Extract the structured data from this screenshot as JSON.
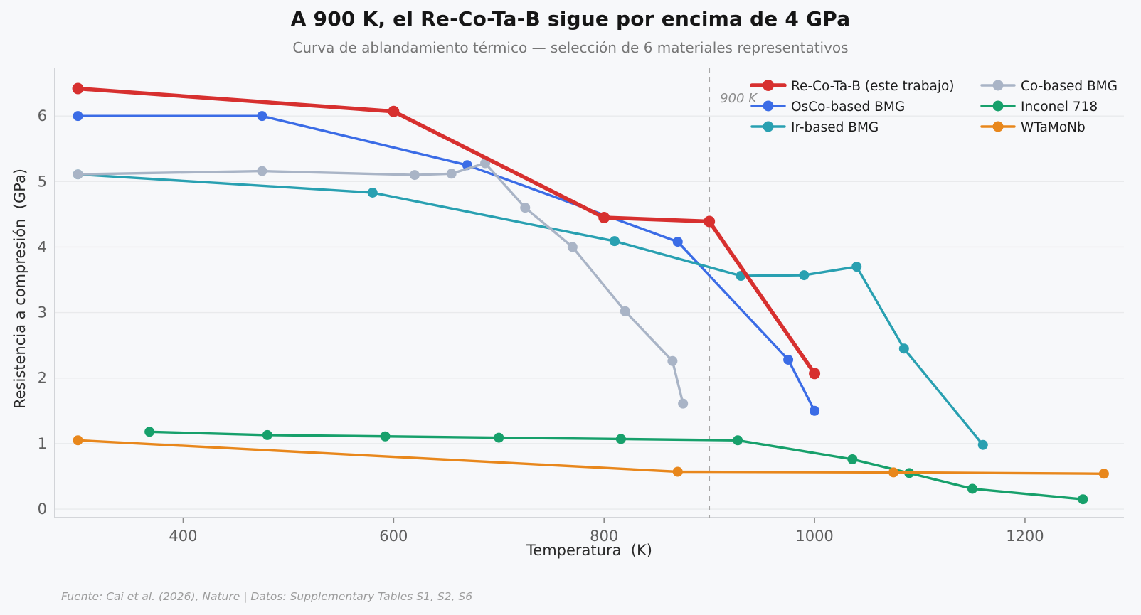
{
  "figure": {
    "title": "A 900 K, el Re-Co-Ta-B sigue por encima de 4 GPa",
    "subtitle": "Curva de ablandamiento térmico — selección de 6 materiales representativos",
    "footer": "Fuente: Cai et al. (2026), Nature | Datos: Supplementary Tables S1, S2, S6"
  },
  "chart_data": {
    "type": "line",
    "title": "A 900 K, el Re-Co-Ta-B sigue por encima de 4 GPa",
    "subtitle": "Curva de ablandamiento térmico — selección de 6 materiales representativos",
    "xlabel": "Temperatura  (K)",
    "ylabel": "Resistencia a compresión  (GPa)",
    "xlim": [
      278,
      1294
    ],
    "ylim": [
      -0.13,
      6.74
    ],
    "xticks": [
      400,
      600,
      800,
      1000,
      1200
    ],
    "yticks": [
      0,
      1,
      2,
      3,
      4,
      5,
      6
    ],
    "grid": "horizontal-only",
    "legend_position": "upper-right, 2 columns, no frame",
    "annotation": {
      "type": "vline",
      "x": 900,
      "label": "900 K"
    },
    "series": [
      {
        "name": "Re-Co-Ta-B (este trabajo)",
        "color": "#d7302f",
        "emphasis": true,
        "x": [
          300,
          600,
          800,
          900,
          1000
        ],
        "y": [
          6.42,
          6.07,
          4.45,
          4.39,
          2.07
        ]
      },
      {
        "name": "OsCo-based BMG",
        "color": "#3b6ce6",
        "emphasis": false,
        "x": [
          300,
          475,
          670,
          870,
          975,
          1000
        ],
        "y": [
          6.0,
          6.0,
          5.25,
          4.08,
          2.28,
          1.5
        ]
      },
      {
        "name": "Ir-based BMG",
        "color": "#29a0b1",
        "emphasis": false,
        "x": [
          300,
          580,
          810,
          930,
          990,
          1040,
          1085,
          1160
        ],
        "y": [
          5.11,
          4.83,
          4.09,
          3.56,
          3.57,
          3.7,
          2.45,
          0.98
        ]
      },
      {
        "name": "Co-based BMG",
        "color": "#a9b4c6",
        "emphasis": false,
        "x": [
          300,
          475,
          620,
          655,
          687,
          725,
          770,
          820,
          865,
          875
        ],
        "y": [
          5.11,
          5.16,
          5.1,
          5.12,
          5.28,
          4.6,
          4.0,
          3.02,
          2.26,
          1.61
        ]
      },
      {
        "name": "Inconel 718",
        "color": "#17a06b",
        "emphasis": false,
        "x": [
          368,
          480,
          592,
          700,
          816,
          927,
          1036,
          1090,
          1150,
          1255
        ],
        "y": [
          1.18,
          1.13,
          1.11,
          1.09,
          1.07,
          1.05,
          0.76,
          0.55,
          0.31,
          0.15
        ]
      },
      {
        "name": "WTaMoNb",
        "color": "#e8871c",
        "emphasis": false,
        "x": [
          300,
          870,
          1075,
          1275
        ],
        "y": [
          1.05,
          0.57,
          0.56,
          0.54
        ]
      }
    ],
    "legend_columns": [
      [
        "Re-Co-Ta-B (este trabajo)",
        "OsCo-based BMG",
        "Ir-based BMG"
      ],
      [
        "Co-based BMG",
        "Inconel 718",
        "WTaMoNb"
      ]
    ]
  },
  "colors": {
    "background": "#f7f8fa",
    "grid": "#e9eaec",
    "spine": "#c9cbcf",
    "tick_label": "#5f5f5f",
    "vline": "#a6a6a6",
    "annotation_text": "#8c8c8c",
    "legend_text": "#1c1c1c"
  }
}
